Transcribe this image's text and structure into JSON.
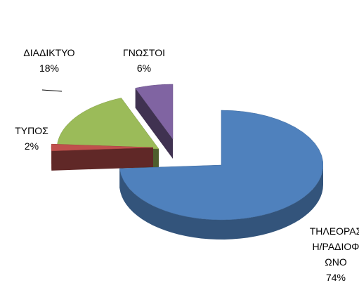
{
  "chart_data": {
    "type": "pie3d",
    "categories": [
      "ΤΗΛΕΟΡΑΣΗ/ΡΑΔΙΟΦΩΝΟ",
      "ΤΥΠΟΣ",
      "ΔΙΑΔΙΚΤΥΟ",
      "ΓΝΩΣΤΟΙ"
    ],
    "values": [
      74,
      2,
      18,
      6
    ],
    "value_labels": [
      "74%",
      "2%",
      "18%",
      "6%"
    ],
    "colors": [
      "#4f81bd",
      "#c0504d",
      "#9bbb59",
      "#8064a2"
    ]
  }
}
